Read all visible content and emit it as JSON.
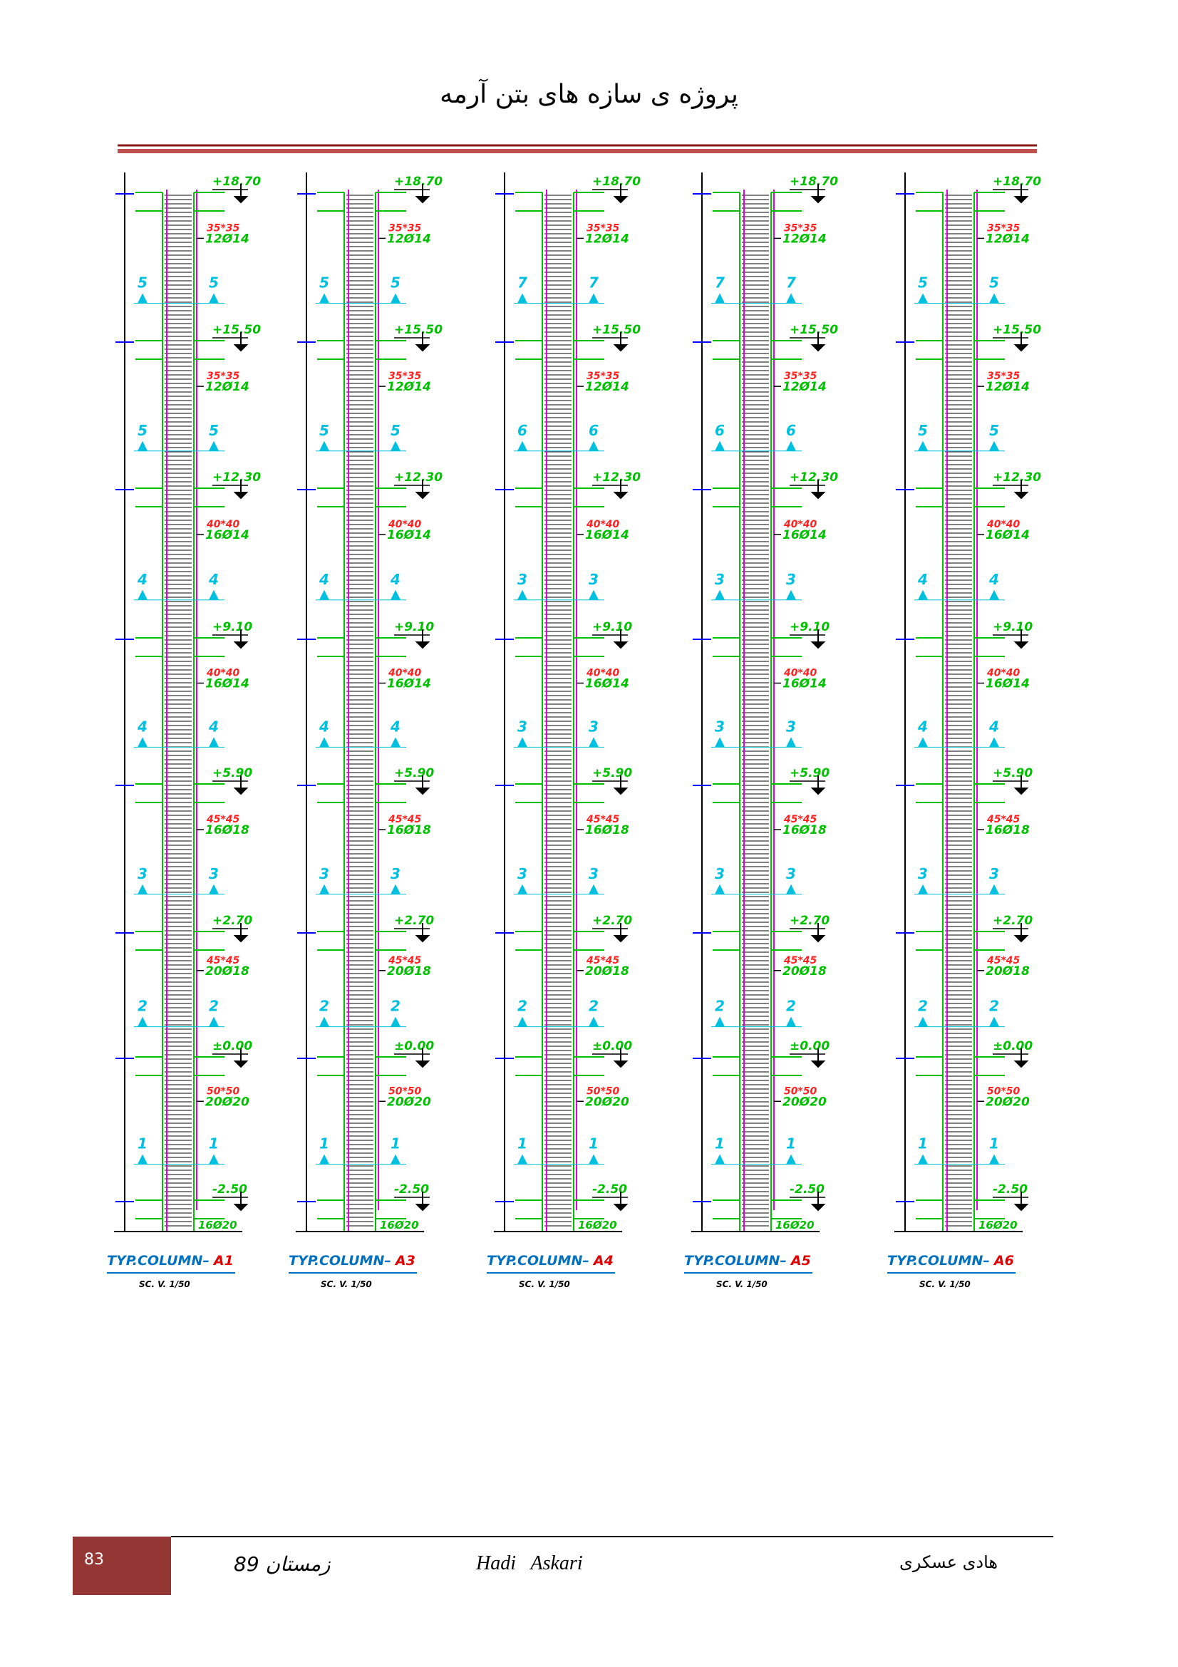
{
  "header": {
    "title": "پروژه ی سازه های بتن آرمه"
  },
  "elevations": [
    "+18.70",
    "+15.50",
    "+12.30",
    "+9.10",
    "+5.90",
    "+2.70",
    "±0.00",
    "-2.50"
  ],
  "footing_rebar": "16Ø20",
  "columns": [
    {
      "prefix": "TYP.COLUMN–",
      "name": "A1",
      "scale": "SC. V. 1/50",
      "sections": [
        {
          "size": "35*35",
          "rebar": "12Ø14",
          "mark": "5"
        },
        {
          "size": "35*35",
          "rebar": "12Ø14",
          "mark": "5"
        },
        {
          "size": "40*40",
          "rebar": "16Ø14",
          "mark": "4"
        },
        {
          "size": "40*40",
          "rebar": "16Ø14",
          "mark": "4"
        },
        {
          "size": "45*45",
          "rebar": "16Ø18",
          "mark": "3"
        },
        {
          "size": "45*45",
          "rebar": "20Ø18",
          "mark": "2"
        },
        {
          "size": "50*50",
          "rebar": "20Ø20",
          "mark": "1"
        }
      ]
    },
    {
      "prefix": "TYP.COLUMN–",
      "name": "A3",
      "scale": "SC. V. 1/50",
      "sections": [
        {
          "size": "35*35",
          "rebar": "12Ø14",
          "mark": "5"
        },
        {
          "size": "35*35",
          "rebar": "12Ø14",
          "mark": "5"
        },
        {
          "size": "40*40",
          "rebar": "16Ø14",
          "mark": "4"
        },
        {
          "size": "40*40",
          "rebar": "16Ø14",
          "mark": "4"
        },
        {
          "size": "45*45",
          "rebar": "16Ø18",
          "mark": "3"
        },
        {
          "size": "45*45",
          "rebar": "20Ø18",
          "mark": "2"
        },
        {
          "size": "50*50",
          "rebar": "20Ø20",
          "mark": "1"
        }
      ]
    },
    {
      "prefix": "TYP.COLUMN–",
      "name": "A4",
      "scale": "SC. V. 1/50",
      "sections": [
        {
          "size": "35*35",
          "rebar": "12Ø14",
          "mark": "7"
        },
        {
          "size": "35*35",
          "rebar": "12Ø14",
          "mark": "6"
        },
        {
          "size": "40*40",
          "rebar": "16Ø14",
          "mark": "3"
        },
        {
          "size": "40*40",
          "rebar": "16Ø14",
          "mark": "3"
        },
        {
          "size": "45*45",
          "rebar": "16Ø18",
          "mark": "3"
        },
        {
          "size": "45*45",
          "rebar": "20Ø18",
          "mark": "2"
        },
        {
          "size": "50*50",
          "rebar": "20Ø20",
          "mark": "1"
        }
      ]
    },
    {
      "prefix": "TYP.COLUMN–",
      "name": "A5",
      "scale": "SC. V. 1/50",
      "sections": [
        {
          "size": "35*35",
          "rebar": "12Ø14",
          "mark": "7"
        },
        {
          "size": "35*35",
          "rebar": "12Ø14",
          "mark": "6"
        },
        {
          "size": "40*40",
          "rebar": "16Ø14",
          "mark": "3"
        },
        {
          "size": "40*40",
          "rebar": "16Ø14",
          "mark": "3"
        },
        {
          "size": "45*45",
          "rebar": "16Ø18",
          "mark": "3"
        },
        {
          "size": "45*45",
          "rebar": "20Ø18",
          "mark": "2"
        },
        {
          "size": "50*50",
          "rebar": "20Ø20",
          "mark": "1"
        }
      ]
    },
    {
      "prefix": "TYP.COLUMN–",
      "name": "A6",
      "scale": "SC. V. 1/50",
      "sections": [
        {
          "size": "35*35",
          "rebar": "12Ø14",
          "mark": "5"
        },
        {
          "size": "35*35",
          "rebar": "12Ø14",
          "mark": "5"
        },
        {
          "size": "40*40",
          "rebar": "16Ø14",
          "mark": "4"
        },
        {
          "size": "40*40",
          "rebar": "16Ø14",
          "mark": "4"
        },
        {
          "size": "45*45",
          "rebar": "16Ø18",
          "mark": "3"
        },
        {
          "size": "45*45",
          "rebar": "20Ø18",
          "mark": "2"
        },
        {
          "size": "50*50",
          "rebar": "20Ø20",
          "mark": "1"
        }
      ]
    }
  ],
  "footer": {
    "page": "83",
    "date": "زمستان 89",
    "author_latin": "Hadi   Askari",
    "author": "هادی عسکری"
  }
}
